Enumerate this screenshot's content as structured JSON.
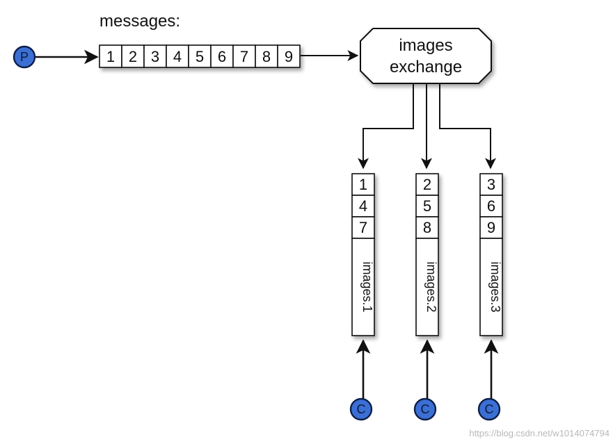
{
  "messages_label": "messages:",
  "producer": {
    "label": "P"
  },
  "message_queue": [
    "1",
    "2",
    "3",
    "4",
    "5",
    "6",
    "7",
    "8",
    "9"
  ],
  "exchange": {
    "line1": "images",
    "line2": "exchange"
  },
  "queues": [
    {
      "name": "images.1",
      "messages": [
        "1",
        "4",
        "7"
      ],
      "consumer": "C"
    },
    {
      "name": "images.2",
      "messages": [
        "2",
        "5",
        "8"
      ],
      "consumer": "C"
    },
    {
      "name": "images.3",
      "messages": [
        "3",
        "6",
        "9"
      ],
      "consumer": "C"
    }
  ],
  "watermark": "https://blog.csdn.net/w1014074794",
  "colors": {
    "node_fill": "#3b6fd4",
    "node_stroke": "#0d1f4a",
    "line": "#111111"
  }
}
